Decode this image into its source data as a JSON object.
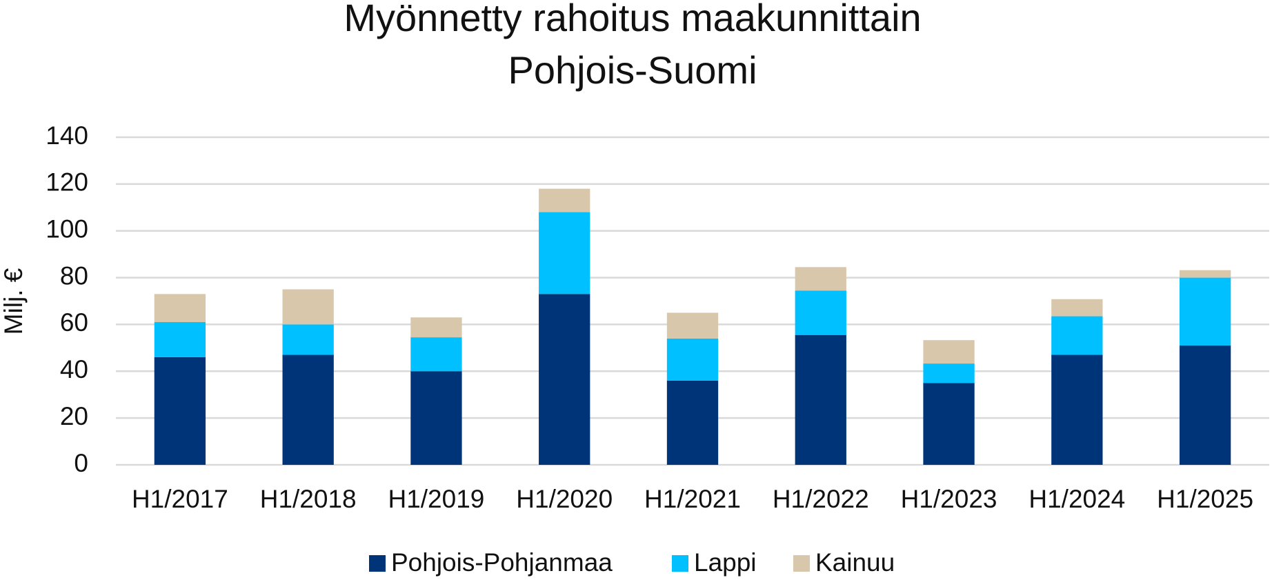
{
  "chart_data": {
    "type": "stacked_bar",
    "title": [
      "Myönnetty rahoitus maakunnittain",
      "Pohjois-Suomi"
    ],
    "y_label": "Milj. €",
    "categories": [
      "H1/2017",
      "H1/2018",
      "H1/2019",
      "H1/2020",
      "H1/2021",
      "H1/2022",
      "H1/2023",
      "H1/2024",
      "H1/2025"
    ],
    "series": [
      {
        "name": "Pohjois-Pohjanmaa",
        "color": "#003478",
        "values": [
          46,
          47,
          40,
          73,
          36,
          55.5,
          35,
          47,
          51
        ]
      },
      {
        "name": "Lappi",
        "color": "#00c0ff",
        "values": [
          15,
          13,
          14.5,
          35,
          18,
          19,
          8.3,
          16.5,
          29
        ]
      },
      {
        "name": "Kainuu",
        "color": "#d9c7ac",
        "values": [
          12,
          15,
          8.5,
          10,
          11,
          10,
          10,
          7.3,
          3.2
        ]
      }
    ],
    "ylim": [
      0,
      140
    ],
    "yticks": [
      0,
      20,
      40,
      60,
      80,
      100,
      120,
      140
    ],
    "grid": true,
    "legend": "bottom"
  }
}
